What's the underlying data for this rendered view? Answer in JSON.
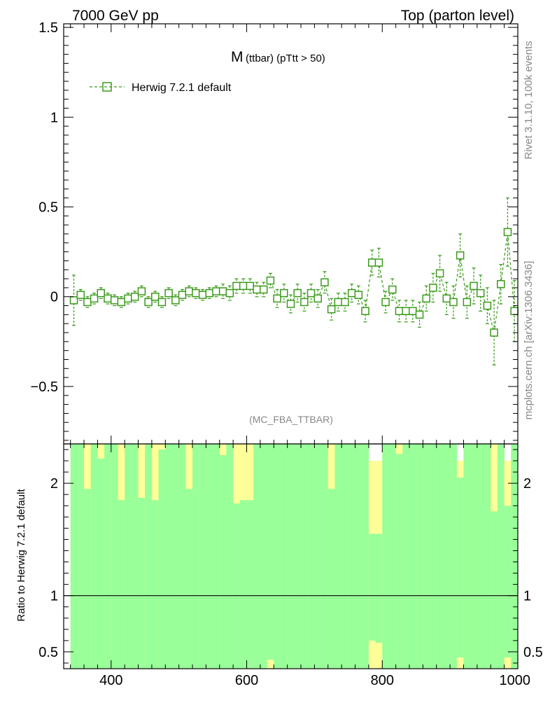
{
  "header": {
    "left": "7000 GeV pp",
    "right": "Top (parton level)"
  },
  "side_labels": {
    "rivet": "Rivet 3.1.10,  100k events",
    "mcplots": "mcplots.cern.ch [arXiv:1306.3436]"
  },
  "plot_title": {
    "main": "M",
    "sub": "(ttbar) (pTtt > 50)"
  },
  "analysis_tag": "(MC_FBA_TTBAR)",
  "legend": {
    "label": "Herwig 7.2.1 default",
    "color": "#3a9a1a"
  },
  "ratio_ylabel": "Ratio to Herwig 7.2.1 default",
  "colors": {
    "series": "#3a9a1a",
    "band_inner": "#99ff99",
    "band_outer": "#ffff99"
  },
  "chart_data": [
    {
      "type": "scatter",
      "title": "M (ttbar) (pTtt > 50)",
      "xlabel": "",
      "ylabel": "",
      "xlim": [
        330,
        1000
      ],
      "ylim": [
        -0.82,
        1.52
      ],
      "yticks": [
        -0.5,
        0,
        0.5,
        1,
        1.5
      ],
      "ytick_labels": [
        "−0.5",
        "0",
        "0.5",
        "1",
        "1.5"
      ],
      "xticks": [
        400,
        600,
        800,
        1000
      ],
      "bin_width": 10,
      "series": [
        {
          "name": "Herwig 7.2.1 default",
          "x": [
            345,
            355,
            365,
            375,
            385,
            395,
            405,
            415,
            425,
            435,
            445,
            455,
            465,
            475,
            485,
            495,
            505,
            515,
            525,
            535,
            545,
            555,
            565,
            575,
            585,
            595,
            605,
            615,
            625,
            635,
            645,
            655,
            665,
            675,
            685,
            695,
            705,
            715,
            725,
            735,
            745,
            755,
            765,
            775,
            785,
            795,
            805,
            815,
            825,
            835,
            845,
            855,
            865,
            875,
            885,
            895,
            905,
            915,
            925,
            935,
            945,
            955,
            965,
            975,
            985,
            995
          ],
          "y": [
            -0.02,
            0.01,
            -0.03,
            -0.01,
            0.02,
            -0.01,
            -0.02,
            -0.03,
            -0.01,
            0.0,
            0.03,
            -0.03,
            0.0,
            -0.03,
            0.02,
            -0.02,
            0.01,
            0.03,
            0.02,
            0.01,
            0.02,
            0.03,
            0.03,
            0.02,
            0.06,
            0.06,
            0.06,
            0.04,
            0.04,
            0.09,
            -0.01,
            0.02,
            -0.04,
            0.02,
            -0.03,
            0.02,
            -0.01,
            0.08,
            -0.07,
            -0.03,
            -0.03,
            0.02,
            0.01,
            -0.08,
            0.19,
            0.19,
            -0.03,
            0.04,
            -0.08,
            -0.08,
            -0.08,
            -0.1,
            -0.01,
            0.05,
            0.13,
            -0.01,
            -0.03,
            0.23,
            -0.03,
            0.06,
            0.02,
            -0.05,
            -0.2,
            0.07,
            0.36,
            -0.08
          ],
          "err": [
            0.14,
            0.03,
            0.03,
            0.03,
            0.03,
            0.03,
            0.03,
            0.03,
            0.03,
            0.03,
            0.03,
            0.03,
            0.03,
            0.03,
            0.03,
            0.03,
            0.03,
            0.03,
            0.03,
            0.03,
            0.03,
            0.03,
            0.04,
            0.04,
            0.04,
            0.04,
            0.04,
            0.04,
            0.04,
            0.04,
            0.05,
            0.05,
            0.05,
            0.05,
            0.05,
            0.05,
            0.05,
            0.06,
            0.06,
            0.05,
            0.05,
            0.05,
            0.05,
            0.06,
            0.07,
            0.08,
            0.06,
            0.06,
            0.06,
            0.06,
            0.06,
            0.07,
            0.07,
            0.08,
            0.1,
            0.09,
            0.09,
            0.12,
            0.09,
            0.1,
            0.1,
            0.1,
            0.18,
            0.11,
            0.19,
            0.17
          ]
        }
      ]
    },
    {
      "type": "bar",
      "title": "",
      "ylabel": "Ratio to Herwig 7.2.1 default",
      "xlim": [
        330,
        1000
      ],
      "ylim": [
        0.35,
        2.35
      ],
      "yticks": [
        0.5,
        1,
        2
      ],
      "ytick_labels": [
        "0.5",
        "1",
        "2"
      ],
      "xticks": [
        400,
        600,
        800,
        1000
      ],
      "xtick_labels": [
        "400",
        "600",
        "800",
        "1000"
      ],
      "reference_line": 1,
      "x": [
        345,
        355,
        365,
        375,
        385,
        395,
        405,
        415,
        425,
        435,
        445,
        455,
        465,
        475,
        485,
        495,
        505,
        515,
        525,
        535,
        545,
        555,
        565,
        575,
        585,
        595,
        605,
        615,
        625,
        635,
        645,
        655,
        665,
        675,
        685,
        695,
        705,
        715,
        725,
        735,
        745,
        755,
        765,
        775,
        785,
        795,
        805,
        815,
        825,
        835,
        845,
        855,
        865,
        875,
        885,
        895,
        905,
        915,
        925,
        935,
        945,
        955,
        965,
        975,
        985,
        995
      ],
      "inner_upper": [
        2.35,
        2.35,
        1.95,
        2.35,
        2.22,
        2.35,
        2.35,
        1.85,
        2.35,
        2.35,
        1.87,
        2.35,
        1.85,
        2.3,
        2.35,
        2.35,
        2.35,
        1.95,
        2.35,
        2.35,
        2.35,
        2.35,
        2.25,
        2.35,
        1.82,
        1.85,
        1.85,
        2.35,
        2.35,
        2.35,
        2.35,
        2.35,
        2.35,
        2.35,
        2.35,
        2.35,
        2.35,
        2.35,
        1.95,
        2.35,
        2.35,
        2.35,
        2.35,
        2.35,
        1.55,
        1.55,
        2.35,
        2.35,
        2.26,
        2.35,
        2.35,
        2.35,
        2.35,
        2.35,
        2.35,
        2.35,
        2.35,
        2.05,
        2.35,
        2.35,
        2.35,
        2.35,
        1.75,
        2.35,
        1.8,
        2.35
      ],
      "outer_upper": [
        2.35,
        2.35,
        2.35,
        2.35,
        2.35,
        2.35,
        2.35,
        2.35,
        2.35,
        2.35,
        2.35,
        2.35,
        2.35,
        2.35,
        2.35,
        2.35,
        2.35,
        2.35,
        2.35,
        2.35,
        2.35,
        2.35,
        2.35,
        2.35,
        2.35,
        2.35,
        2.35,
        2.35,
        2.35,
        2.2,
        2.35,
        2.35,
        2.35,
        2.35,
        2.35,
        2.35,
        2.35,
        2.35,
        2.35,
        2.35,
        2.35,
        2.35,
        2.35,
        2.35,
        2.2,
        2.2,
        2.35,
        2.35,
        2.35,
        2.35,
        2.35,
        2.35,
        2.35,
        2.35,
        2.35,
        2.35,
        2.35,
        2.2,
        2.35,
        2.35,
        2.35,
        2.35,
        2.35,
        2.35,
        2.2,
        2.35
      ],
      "inner_lower": [
        0.35,
        0.35,
        0.35,
        0.35,
        0.35,
        0.35,
        0.35,
        0.35,
        0.35,
        0.35,
        0.35,
        0.35,
        0.35,
        0.35,
        0.35,
        0.35,
        0.35,
        0.35,
        0.35,
        0.35,
        0.35,
        0.35,
        0.35,
        0.35,
        0.35,
        0.35,
        0.35,
        0.35,
        0.35,
        0.43,
        0.35,
        0.35,
        0.35,
        0.35,
        0.35,
        0.35,
        0.35,
        0.35,
        0.35,
        0.35,
        0.35,
        0.35,
        0.35,
        0.35,
        0.6,
        0.58,
        0.35,
        0.35,
        0.35,
        0.35,
        0.35,
        0.35,
        0.35,
        0.35,
        0.35,
        0.35,
        0.35,
        0.45,
        0.35,
        0.35,
        0.35,
        0.35,
        0.35,
        0.35,
        0.45,
        0.35
      ],
      "outer_lower": [
        0.35,
        0.35,
        0.35,
        0.35,
        0.35,
        0.35,
        0.35,
        0.35,
        0.35,
        0.35,
        0.35,
        0.35,
        0.35,
        0.35,
        0.35,
        0.35,
        0.35,
        0.35,
        0.35,
        0.35,
        0.35,
        0.35,
        0.35,
        0.35,
        0.35,
        0.35,
        0.35,
        0.35,
        0.35,
        0.35,
        0.35,
        0.35,
        0.35,
        0.35,
        0.35,
        0.35,
        0.35,
        0.35,
        0.35,
        0.35,
        0.35,
        0.35,
        0.35,
        0.35,
        0.35,
        0.35,
        0.35,
        0.35,
        0.35,
        0.35,
        0.35,
        0.35,
        0.35,
        0.35,
        0.35,
        0.35,
        0.35,
        0.35,
        0.35,
        0.35,
        0.35,
        0.35,
        0.35,
        0.35,
        0.35,
        0.35
      ]
    }
  ]
}
